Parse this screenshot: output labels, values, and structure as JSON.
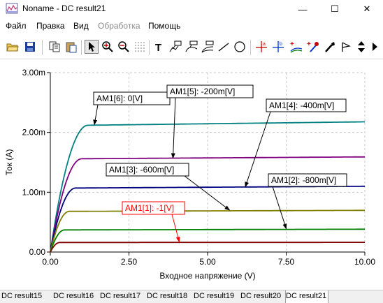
{
  "window": {
    "title": "Noname - DC result21",
    "minimize_glyph": "—",
    "maximize_glyph": "☐",
    "close_glyph": "✕"
  },
  "menu": [
    {
      "label": "Файл",
      "enabled": true
    },
    {
      "label": "Правка",
      "enabled": true
    },
    {
      "label": "Вид",
      "enabled": true
    },
    {
      "label": "Обработка",
      "enabled": false
    },
    {
      "label": "Помощь",
      "enabled": true
    }
  ],
  "toolbar": {
    "icons": [
      "open-icon",
      "save-icon",
      "copy-icon",
      "paste-icon",
      "pointer-icon",
      "zoom-in-icon",
      "zoom-out-icon",
      "zoom-100-icon",
      "grid-icon",
      "text-icon",
      "annotation-icon",
      "curve-label-icon",
      "curve-label-2-icon",
      "line-icon",
      "ellipse-icon",
      "cursor-a-icon",
      "cursor-b-icon",
      "add-cursor-icon",
      "add-marker-icon",
      "probe-icon",
      "flag-icon",
      "up-down-icon",
      "arrow-right-icon"
    ]
  },
  "chart_data": {
    "type": "line",
    "xlabel": "Входное напряжение (V)",
    "ylabel": "Ток (A)",
    "xlim": [
      0,
      10
    ],
    "ylim": [
      0,
      0.003
    ],
    "x_ticks": [
      "0.00",
      "2.50",
      "5.00",
      "7.50",
      "10.00"
    ],
    "y_ticks": [
      "0.00",
      "1.00m",
      "2.00m",
      "3.00m"
    ],
    "grid": true,
    "series": [
      {
        "name": "AM1[6]: 0[V]",
        "color": "#008080",
        "sat": 0.00212,
        "vsat": 1.2,
        "slope": 6.5e-06
      },
      {
        "name": "AM1[5]: -200m[V]",
        "color": "#800080",
        "sat": 0.00156,
        "vsat": 1.0,
        "slope": 3.4e-06
      },
      {
        "name": "AM1[4]: -400m[V]",
        "color": "#000080",
        "sat": 0.00107,
        "vsat": 0.8,
        "slope": 3.2e-06
      },
      {
        "name": "AM1[3]: -600m[V]",
        "color": "#808000",
        "sat": 0.00068,
        "vsat": 0.6,
        "slope": 1.8e-06
      },
      {
        "name": "AM1[2]: -800m[V]",
        "color": "#008000",
        "sat": 0.00037,
        "vsat": 0.45,
        "slope": 1.2e-06
      },
      {
        "name": "AM1[1]: -1[V]",
        "color": "#800000",
        "sat": 0.00016,
        "vsat": 0.3,
        "slope": 2e-07
      }
    ],
    "annotations": [
      {
        "text": "AM1[6]: 0[V]",
        "target": {
          "x": 1.4,
          "y": 0.00213
        },
        "color": "#000000"
      },
      {
        "text": "AM1[5]: -200m[V]",
        "target": {
          "x": 3.9,
          "y": 0.00157
        },
        "color": "#000000"
      },
      {
        "text": "AM1[4]: -400m[V]",
        "target": {
          "x": 6.2,
          "y": 0.00109
        },
        "color": "#000000"
      },
      {
        "text": "AM1[3]: -600m[V]",
        "target": {
          "x": 5.7,
          "y": 0.0007
        },
        "color": "#000000"
      },
      {
        "text": "AM1[2]: -800m[V]",
        "target": {
          "x": 7.5,
          "y": 0.00039
        },
        "color": "#000000"
      },
      {
        "text": "AM1[1]: -1[V]",
        "target": {
          "x": 4.1,
          "y": 0.00017
        },
        "color": "#ff0000"
      }
    ]
  },
  "tabs": [
    {
      "label": "DC result15",
      "active": false
    },
    {
      "label": "DC result16",
      "active": false
    },
    {
      "label": "DC result17",
      "active": false
    },
    {
      "label": "DC result18",
      "active": false
    },
    {
      "label": "DC result19",
      "active": false
    },
    {
      "label": "DC result20",
      "active": false
    },
    {
      "label": "DC result21",
      "active": true
    }
  ]
}
